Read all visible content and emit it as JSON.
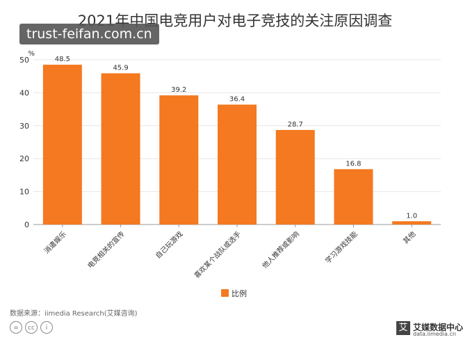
{
  "title": "2021年中国电竞用户对电子竞技的关注原因调查",
  "watermark": "trust-feifan.com.cn",
  "source": "数据来源：iimedia Research(艾媒咨询)",
  "logo": {
    "mark": "艾",
    "brand": "艾媒数据中心",
    "site": "data.iimedia.cn"
  },
  "cc_icons": [
    "=",
    "cc",
    "i"
  ],
  "colors": {
    "bar": "#F47920",
    "axis": "#999999",
    "grid": "#E6E6E6"
  },
  "chart_data": {
    "type": "bar",
    "ylabel": "%",
    "ylim": [
      0,
      50
    ],
    "yticks": [
      "0",
      "10",
      "20",
      "30",
      "40",
      "50"
    ],
    "categories": [
      "消遣娱乐",
      "电竞相关的宣传",
      "自己玩游戏",
      "喜欢某个战队或选手",
      "他人推荐或影响",
      "学习游戏技能",
      "其他"
    ],
    "series": [
      {
        "name": "比例",
        "values": [
          48.5,
          45.9,
          39.2,
          36.4,
          28.7,
          16.8,
          1.0
        ]
      }
    ],
    "data_labels": [
      "48.5",
      "45.9",
      "39.2",
      "36.4",
      "28.7",
      "16.8",
      "1.0"
    ],
    "grid": true,
    "legend_position": "bottom"
  }
}
